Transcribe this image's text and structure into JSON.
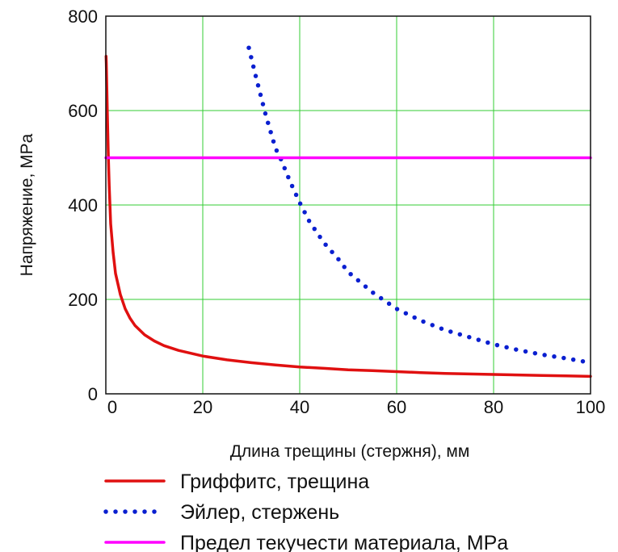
{
  "chart_data": {
    "type": "line",
    "title": "",
    "xlabel": "Длина трещины (стержня), мм",
    "ylabel": "Напряжение, MPa",
    "xlim": [
      0,
      100
    ],
    "ylim": [
      0,
      800
    ],
    "x_ticks": [
      0,
      20,
      40,
      60,
      80,
      100
    ],
    "y_ticks": [
      0,
      200,
      400,
      600,
      800
    ],
    "grid": true,
    "grid_color": "#33cc33",
    "legend_position": "bottom",
    "series": [
      {
        "name": "Гриффитс, трещина",
        "color": "#e01010",
        "style": "solid",
        "points": [
          [
            0.05,
            715
          ],
          [
            0.1,
            700
          ],
          [
            0.2,
            650
          ],
          [
            0.3,
            600
          ],
          [
            0.5,
            510
          ],
          [
            0.7,
            440
          ],
          [
            1,
            360
          ],
          [
            1.5,
            300
          ],
          [
            2,
            255
          ],
          [
            3,
            210
          ],
          [
            4,
            180
          ],
          [
            5,
            160
          ],
          [
            6,
            145
          ],
          [
            8,
            125
          ],
          [
            10,
            112
          ],
          [
            12,
            102
          ],
          [
            15,
            92
          ],
          [
            20,
            80
          ],
          [
            25,
            72
          ],
          [
            30,
            66
          ],
          [
            35,
            61
          ],
          [
            40,
            57
          ],
          [
            45,
            54
          ],
          [
            50,
            51
          ],
          [
            55,
            49
          ],
          [
            60,
            47
          ],
          [
            65,
            45
          ],
          [
            70,
            43
          ],
          [
            75,
            42
          ],
          [
            80,
            41
          ],
          [
            85,
            40
          ],
          [
            90,
            39
          ],
          [
            95,
            38
          ],
          [
            100,
            37
          ]
        ]
      },
      {
        "name": "Эйлер, стержень",
        "color": "#0a1fd0",
        "style": "dotted",
        "points": [
          [
            29.5,
            733
          ],
          [
            31,
            670
          ],
          [
            33,
            590
          ],
          [
            35,
            520
          ],
          [
            36,
            500
          ],
          [
            38,
            450
          ],
          [
            40,
            405
          ],
          [
            42,
            365
          ],
          [
            45,
            320
          ],
          [
            48,
            285
          ],
          [
            50,
            258
          ],
          [
            55,
            215
          ],
          [
            60,
            180
          ],
          [
            65,
            155
          ],
          [
            70,
            135
          ],
          [
            75,
            120
          ],
          [
            80,
            105
          ],
          [
            85,
            93
          ],
          [
            90,
            83
          ],
          [
            95,
            75
          ],
          [
            100,
            66
          ]
        ]
      },
      {
        "name": "Предел текучести материала, MPa",
        "color": "#ff00ff",
        "style": "solid",
        "points": [
          [
            0,
            500
          ],
          [
            100,
            500
          ]
        ]
      }
    ]
  }
}
